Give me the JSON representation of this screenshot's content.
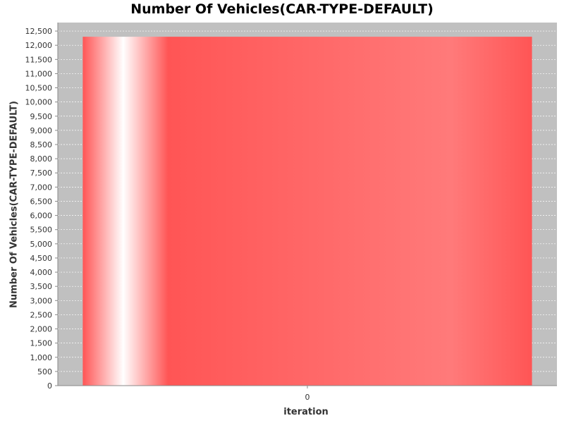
{
  "chart_data": {
    "type": "bar",
    "title": "Number Of Vehicles(CAR-TYPE-DEFAULT)",
    "xlabel": "iteration",
    "ylabel": "Number Of Vehicles(CAR-TYPE-DEFAULT)",
    "categories": [
      "0"
    ],
    "values": [
      12300
    ],
    "ylim": [
      0,
      12800
    ],
    "yticks": [
      0,
      500,
      1000,
      1500,
      2000,
      2500,
      3000,
      3500,
      4000,
      4500,
      5000,
      5500,
      6000,
      6500,
      7000,
      7500,
      8000,
      8500,
      9000,
      9500,
      10000,
      10500,
      11000,
      11500,
      12000,
      12500
    ],
    "ytick_labels": [
      "0",
      "500",
      "1,000",
      "1,500",
      "2,000",
      "2,500",
      "3,000",
      "3,500",
      "4,000",
      "4,500",
      "5,000",
      "5,500",
      "6,000",
      "6,500",
      "7,000",
      "7,500",
      "8,000",
      "8,500",
      "9,000",
      "9,500",
      "10,000",
      "10,500",
      "11,000",
      "11,500",
      "12,000",
      "12,500"
    ],
    "grid": true,
    "colors": {
      "plot_background": "#c0c0c0",
      "bar": "#ff5555",
      "gridline": "#ffffff"
    }
  }
}
